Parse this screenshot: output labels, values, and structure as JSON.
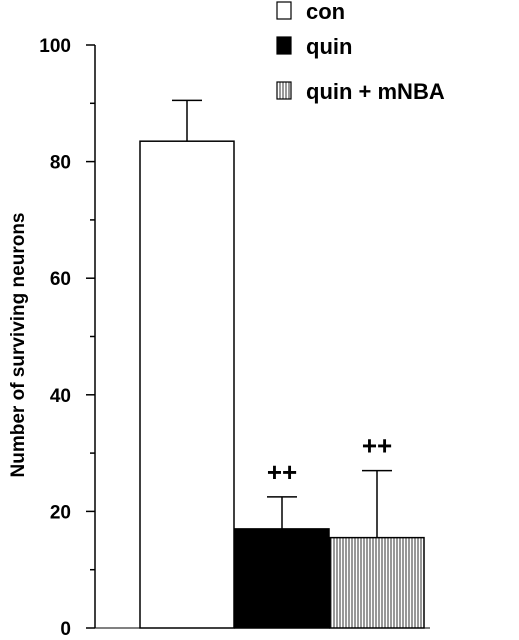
{
  "chart_data": {
    "type": "bar",
    "title": "",
    "xlabel": "",
    "ylabel": "Number of surviving neurons",
    "ylim": [
      0,
      100
    ],
    "yticks": [
      "0",
      "20",
      "40",
      "60",
      "80",
      "100"
    ],
    "grid": false,
    "legend_position": "top-right",
    "series": [
      {
        "name": "con",
        "value": 83.5,
        "error": 7,
        "annotation": "",
        "fill": "white",
        "color": "#ffffff"
      },
      {
        "name": "quin",
        "value": 17,
        "error": 5.5,
        "annotation": "++",
        "fill": "solid",
        "color": "#000000"
      },
      {
        "name": "quin + mNBA",
        "value": 15.5,
        "error": 11.5,
        "annotation": "++",
        "fill": "vertical-stripes",
        "color": "#000000"
      }
    ]
  }
}
